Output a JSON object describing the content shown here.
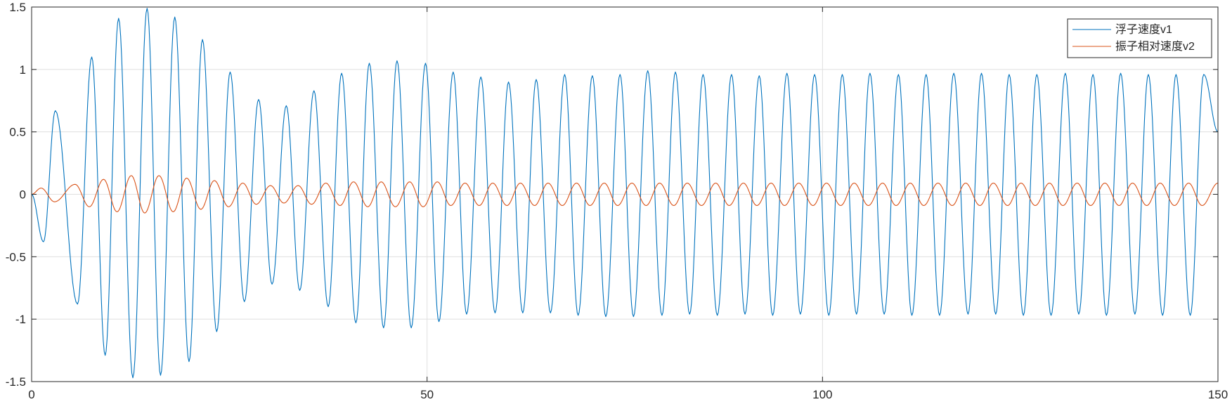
{
  "chart_data": {
    "type": "line",
    "title": "",
    "xlabel": "",
    "ylabel": "",
    "xlim": [
      0,
      150
    ],
    "ylim": [
      -1.5,
      1.5
    ],
    "xticks": [
      0,
      50,
      100,
      150
    ],
    "xtick_labels": [
      "0",
      "50",
      "100",
      "150"
    ],
    "yticks": [
      -1.5,
      -1,
      -0.5,
      0,
      0.5,
      1,
      1.5
    ],
    "ytick_labels": [
      "-1.5",
      "-1",
      "-0.5",
      "0",
      "0.5",
      "1",
      "1.5"
    ],
    "grid": true,
    "legend_location": "top-right",
    "series": [
      {
        "name": "浮子速度v1",
        "color": "#0072BD",
        "x": [
          0,
          1.5,
          3.0,
          5.8,
          7.6,
          9.3,
          11.0,
          12.8,
          14.6,
          16.3,
          18.1,
          19.9,
          21.6,
          23.4,
          25.1,
          26.9,
          28.7,
          30.4,
          32.2,
          33.9,
          35.7,
          37.5,
          39.2,
          41.0,
          42.7,
          44.5,
          46.2,
          48.0,
          49.8,
          51.5,
          53.3,
          55.0,
          56.8,
          58.6,
          60.3,
          62.1,
          63.8,
          65.6,
          67.4,
          69.1,
          70.9,
          72.6,
          74.4,
          76.1,
          77.9,
          79.7,
          81.4,
          83.2,
          84.9,
          86.7,
          88.5,
          90.2,
          92.0,
          93.7,
          95.5,
          97.2,
          99.0,
          100.8,
          102.5,
          104.3,
          106.0,
          107.8,
          109.6,
          111.3,
          113.1,
          114.8,
          116.6,
          118.4,
          120.1,
          121.9,
          123.6,
          125.4,
          127.1,
          128.9,
          130.7,
          132.4,
          134.2,
          135.9,
          137.7,
          139.5,
          141.2,
          143.0,
          144.7,
          146.5,
          148.2,
          150
        ],
        "values": [
          0,
          -0.38,
          0.67,
          -0.88,
          1.1,
          -1.29,
          1.41,
          -1.47,
          1.49,
          -1.45,
          1.42,
          -1.34,
          1.24,
          -1.1,
          0.98,
          -0.86,
          0.76,
          -0.72,
          0.71,
          -0.77,
          0.83,
          -0.9,
          0.97,
          -1.03,
          1.05,
          -1.07,
          1.07,
          -1.07,
          1.05,
          -1.02,
          0.98,
          -0.96,
          0.94,
          -0.95,
          0.9,
          -0.95,
          0.92,
          -0.95,
          0.96,
          -0.97,
          0.95,
          -0.98,
          0.96,
          -0.98,
          0.99,
          -0.97,
          0.98,
          -0.96,
          0.96,
          -0.97,
          0.96,
          -0.96,
          0.95,
          -0.97,
          0.97,
          -0.96,
          0.96,
          -0.97,
          0.96,
          -0.96,
          0.97,
          -0.96,
          0.96,
          -0.97,
          0.96,
          -0.97,
          0.97,
          -0.96,
          0.97,
          -0.96,
          0.96,
          -0.97,
          0.96,
          -0.97,
          0.97,
          -0.96,
          0.96,
          -0.97,
          0.97,
          -0.96,
          0.96,
          -0.97,
          0.96,
          -0.97,
          0.96,
          0.5
        ]
      },
      {
        "name": "振子相对速度v2",
        "color": "#D95319",
        "x": [
          0,
          1.2,
          2.9,
          5.5,
          7.3,
          9.1,
          10.8,
          12.6,
          14.3,
          16.1,
          17.9,
          19.6,
          21.4,
          23.1,
          24.9,
          26.7,
          28.4,
          30.2,
          31.9,
          33.7,
          35.4,
          37.2,
          39.0,
          40.7,
          42.5,
          44.2,
          46.0,
          47.8,
          49.5,
          51.3,
          53.0,
          54.8,
          56.6,
          58.3,
          60.1,
          61.8,
          63.6,
          65.3,
          67.1,
          68.9,
          70.6,
          72.4,
          74.1,
          75.9,
          77.7,
          79.4,
          81.2,
          82.9,
          84.7,
          86.5,
          88.2,
          90.0,
          91.7,
          93.5,
          95.2,
          97.0,
          98.8,
          100.5,
          102.3,
          104.0,
          105.8,
          107.6,
          109.3,
          111.1,
          112.8,
          114.6,
          116.4,
          118.1,
          119.9,
          121.6,
          123.4,
          125.1,
          126.9,
          128.7,
          130.4,
          132.2,
          133.9,
          135.7,
          137.5,
          139.2,
          141.0,
          142.7,
          144.5,
          146.3,
          148.0,
          150
        ],
        "values": [
          0,
          0.05,
          -0.06,
          0.08,
          -0.1,
          0.12,
          -0.14,
          0.15,
          -0.15,
          0.15,
          -0.14,
          0.13,
          -0.12,
          0.11,
          -0.1,
          0.09,
          -0.08,
          0.07,
          -0.07,
          0.07,
          -0.08,
          0.09,
          -0.09,
          0.1,
          -0.1,
          0.1,
          -0.1,
          0.1,
          -0.1,
          0.1,
          -0.09,
          0.09,
          -0.09,
          0.09,
          -0.09,
          0.09,
          -0.09,
          0.09,
          -0.09,
          0.09,
          -0.09,
          0.09,
          -0.09,
          0.09,
          -0.09,
          0.09,
          -0.09,
          0.09,
          -0.09,
          0.09,
          -0.09,
          0.09,
          -0.09,
          0.09,
          -0.09,
          0.09,
          -0.09,
          0.09,
          -0.09,
          0.09,
          -0.09,
          0.09,
          -0.09,
          0.09,
          -0.09,
          0.09,
          -0.09,
          0.09,
          -0.09,
          0.09,
          -0.09,
          0.09,
          -0.09,
          0.09,
          -0.09,
          0.09,
          -0.09,
          0.09,
          -0.09,
          0.09,
          -0.09,
          0.09,
          -0.09,
          0.09,
          -0.09,
          0.09
        ]
      }
    ]
  }
}
